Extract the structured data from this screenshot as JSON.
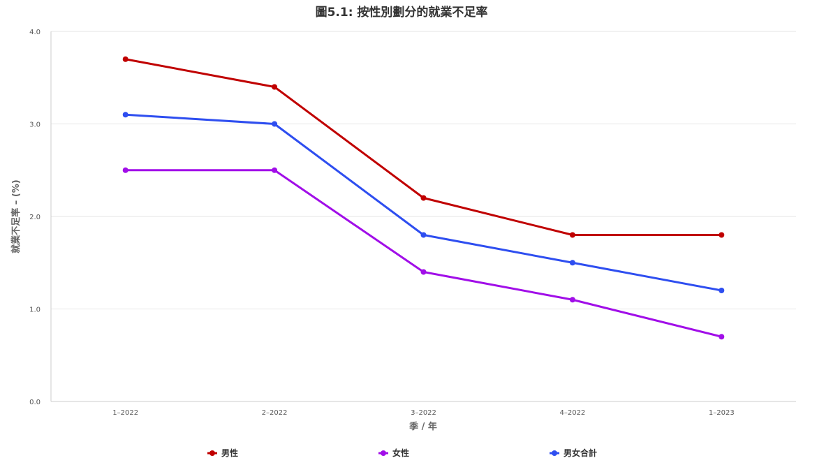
{
  "chart_data": {
    "type": "line",
    "title": "圖5.1:  按性別劃分的就業不足率",
    "xlabel": "季 / 年",
    "ylabel": "就業不足率 – (%)",
    "categories": [
      "1–2022",
      "2–2022",
      "3–2022",
      "4–2022",
      "1–2023"
    ],
    "ylim": [
      0,
      4
    ],
    "yticks": [
      "0.0",
      "1.0",
      "2.0",
      "3.0",
      "4.0"
    ],
    "grid": true,
    "legend_position": "bottom",
    "series": [
      {
        "name": "男性",
        "color": "#c00000",
        "values": [
          3.7,
          3.4,
          2.2,
          1.8,
          1.8
        ]
      },
      {
        "name": "女性",
        "color": "#a10ee8",
        "values": [
          2.5,
          2.5,
          1.4,
          1.1,
          0.7
        ]
      },
      {
        "name": "男女合計",
        "color": "#2e4ef0",
        "values": [
          3.1,
          3.0,
          1.8,
          1.5,
          1.2
        ]
      }
    ]
  }
}
